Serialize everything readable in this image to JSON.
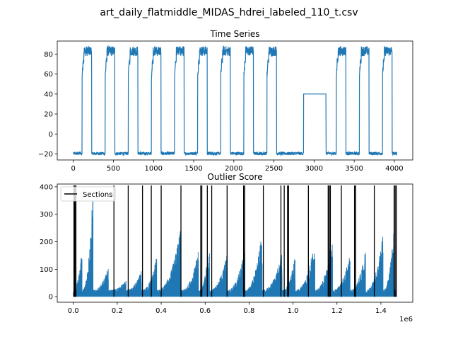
{
  "figure": {
    "suptitle": "art_daily_flatmiddle_MIDAS_hdrei_labeled_110_t.csv"
  },
  "chart_data": [
    {
      "type": "line",
      "title": "Time Series",
      "xlabel": "",
      "ylabel": "",
      "xlim": [
        -200,
        4230
      ],
      "ylim": [
        -26,
        93
      ],
      "xticks": [
        0,
        500,
        1000,
        1500,
        2000,
        2500,
        3000,
        3500,
        4000
      ],
      "xtick_labels": [
        "0",
        "500",
        "1000",
        "1500",
        "2000",
        "2500",
        "3000",
        "3500",
        "4000"
      ],
      "yticks": [
        -20,
        0,
        20,
        40,
        60,
        80
      ],
      "ytick_labels": [
        "−20",
        "0",
        "20",
        "40",
        "60",
        "80"
      ],
      "grid": false,
      "series": [
        {
          "color": "#1f77b4",
          "description_pattern": "daily square-wave pattern",
          "low_level": -19.5,
          "high_level": 84,
          "period": 288,
          "high_windows": [
            [
              110,
              230
            ],
            [
              398,
              518
            ],
            [
              686,
              806
            ],
            [
              974,
              1094
            ],
            [
              1262,
              1382
            ],
            [
              1550,
              1670
            ],
            [
              1838,
              1958
            ],
            [
              2126,
              2246
            ],
            [
              2414,
              2534
            ],
            [
              3278,
              3398
            ],
            [
              3566,
              3686
            ],
            [
              3854,
              3974
            ]
          ],
          "flat_window": [
            2870,
            3150
          ],
          "flat_level": 40,
          "x_end": 4031
        }
      ]
    },
    {
      "type": "line",
      "title": "Outlier Score",
      "xlabel": "",
      "ylabel": "",
      "x_offset_label": "1e6",
      "xlim": [
        -0.073,
        1.545
      ],
      "ylim": [
        -20,
        410
      ],
      "xticks": [
        0.0,
        0.2,
        0.4,
        0.6,
        0.8,
        1.0,
        1.2,
        1.4
      ],
      "xtick_labels": [
        "0.0",
        "0.2",
        "0.4",
        "0.6",
        "0.8",
        "1.0",
        "1.2",
        "1.4"
      ],
      "yticks": [
        0,
        100,
        200,
        300,
        400
      ],
      "ytick_labels": [
        "0",
        "100",
        "200",
        "300",
        "400"
      ],
      "grid": false,
      "legend": {
        "entries": [
          "Sections"
        ],
        "placement": "upper-left"
      },
      "series": [
        {
          "color": "#1f77b4",
          "peaks": [
            [
              0.04,
              180
            ],
            [
              0.09,
              400
            ],
            [
              0.16,
              110
            ],
            [
              0.24,
              60
            ],
            [
              0.31,
              95
            ],
            [
              0.38,
              150
            ],
            [
              0.49,
              255
            ],
            [
              0.57,
              170
            ],
            [
              0.62,
              200
            ],
            [
              0.7,
              160
            ],
            [
              0.78,
              175
            ],
            [
              0.86,
              240
            ],
            [
              0.95,
              160
            ],
            [
              1.01,
              155
            ],
            [
              1.1,
              210
            ],
            [
              1.18,
              235
            ],
            [
              1.26,
              160
            ],
            [
              1.33,
              175
            ],
            [
              1.41,
              235
            ],
            [
              1.46,
              260
            ]
          ],
          "x_end": 1.47
        },
        {
          "name": "Sections",
          "color": "#000000",
          "vlines": [
            0.003,
            0.006,
            0.01,
            0.012,
            0.185,
            0.25,
            0.315,
            0.355,
            0.4,
            0.49,
            0.58,
            0.585,
            0.61,
            0.63,
            0.7,
            0.775,
            0.78,
            0.865,
            0.945,
            0.96,
            0.975,
            0.98,
            1.07,
            1.16,
            1.165,
            1.17,
            1.22,
            1.28,
            1.285,
            1.37,
            1.46,
            1.465,
            1.47
          ]
        }
      ]
    }
  ]
}
